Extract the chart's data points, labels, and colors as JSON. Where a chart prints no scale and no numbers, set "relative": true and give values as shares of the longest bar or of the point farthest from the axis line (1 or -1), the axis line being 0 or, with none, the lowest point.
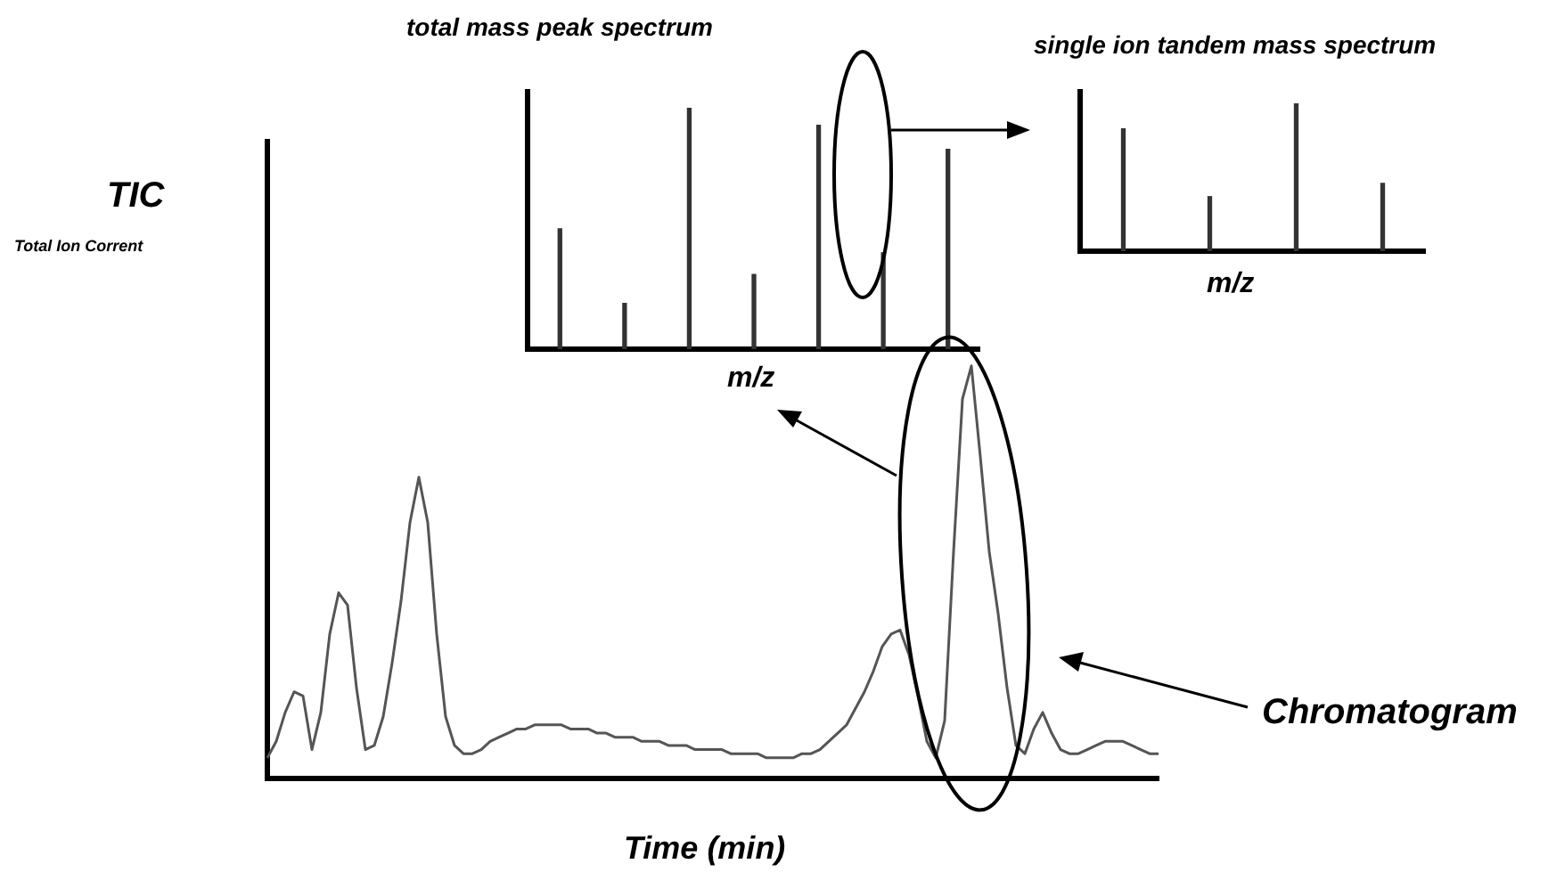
{
  "chart_data": [
    {
      "type": "line",
      "xlabel": "Time (min)",
      "ylabel": "TIC",
      "annotations": [
        "Total Ion Corrent",
        "Chromatogram"
      ],
      "relative": true,
      "categories": [
        null,
        null,
        null,
        null,
        null,
        null,
        null,
        null,
        null,
        null,
        null,
        null,
        null,
        null,
        null,
        null,
        null,
        null,
        null,
        null,
        null,
        null,
        null,
        null,
        null,
        null,
        null,
        null,
        null,
        null,
        null,
        null,
        null,
        null,
        null,
        null,
        null,
        null,
        null,
        null,
        null,
        null,
        null,
        null,
        null,
        null,
        null,
        null,
        null,
        null,
        null,
        null,
        null,
        null,
        null,
        null,
        null,
        null,
        null,
        null,
        null,
        null,
        null,
        null,
        null,
        null,
        null,
        null,
        null,
        null,
        null,
        null,
        null,
        null,
        null,
        null,
        null,
        null,
        null,
        null,
        null,
        null,
        null,
        null,
        null,
        null,
        null,
        null,
        null,
        null,
        null,
        null,
        null,
        null,
        null,
        null,
        null,
        null,
        null,
        null,
        null
      ],
      "series": [
        {
          "color": "#555555",
          "values": [
            0.05,
            0.09,
            0.16,
            0.21,
            0.2,
            0.07,
            0.16,
            0.35,
            0.45,
            0.42,
            0.22,
            0.07,
            0.08,
            0.15,
            0.28,
            0.43,
            0.62,
            0.73,
            0.62,
            0.35,
            0.15,
            0.08,
            0.06,
            0.06,
            0.07,
            0.09,
            0.1,
            0.11,
            0.12,
            0.12,
            0.13,
            0.13,
            0.13,
            0.13,
            0.12,
            0.12,
            0.12,
            0.11,
            0.11,
            0.1,
            0.1,
            0.1,
            0.09,
            0.09,
            0.09,
            0.08,
            0.08,
            0.08,
            0.07,
            0.07,
            0.07,
            0.07,
            0.06,
            0.06,
            0.06,
            0.06,
            0.05,
            0.05,
            0.05,
            0.05,
            0.06,
            0.06,
            0.07,
            0.09,
            0.11,
            0.13,
            0.17,
            0.21,
            0.26,
            0.32,
            0.35,
            0.36,
            0.3,
            0.2,
            0.09,
            0.05,
            0.14,
            0.55,
            0.92,
            1.0,
            0.78,
            0.55,
            0.4,
            0.22,
            0.08,
            0.06,
            0.12,
            0.16,
            0.11,
            0.07,
            0.06,
            0.06,
            0.07,
            0.08,
            0.09,
            0.09,
            0.09,
            0.08,
            0.07,
            0.06,
            0.06
          ]
        }
      ]
    },
    {
      "type": "bar",
      "title": "total mass peak spectrum",
      "xlabel": "m/z",
      "relative": true,
      "color": "#333333",
      "categories": [
        null,
        null,
        null,
        null,
        null,
        null,
        null
      ],
      "values": [
        0.5,
        0.19,
        1.0,
        0.31,
        0.93,
        0.4,
        0.83
      ]
    },
    {
      "type": "bar",
      "title": "single ion tandem mass spectrum",
      "xlabel": "m/z",
      "relative": true,
      "color": "#333333",
      "categories": [
        null,
        null,
        null,
        null
      ],
      "values": [
        0.83,
        0.37,
        1.0,
        0.46
      ]
    }
  ]
}
